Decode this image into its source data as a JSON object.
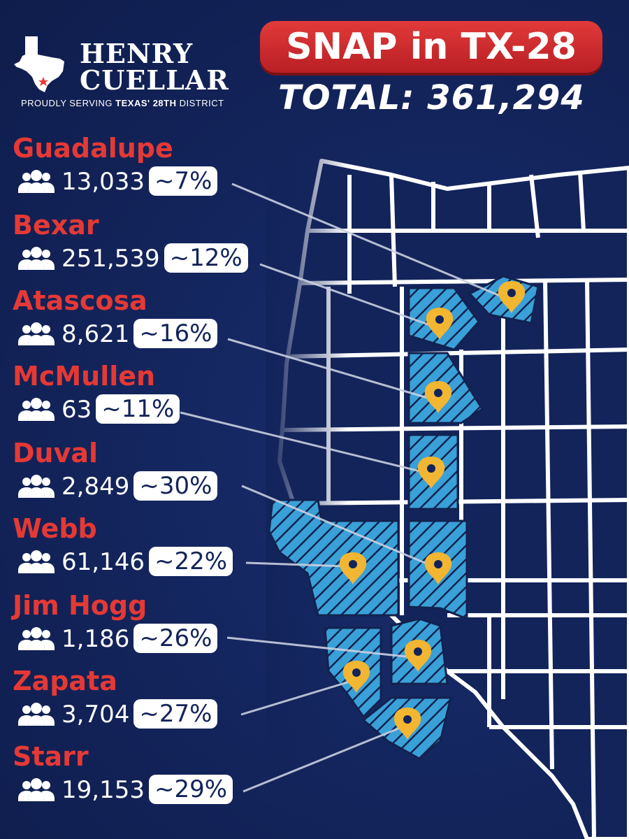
{
  "logo": {
    "name_line1": "HENRY",
    "name_line2": "CUELLAR",
    "tagline_pre": "PROUDLY SERVING ",
    "tagline_bold": "TEXAS' 28TH",
    "tagline_post": " DISTRICT",
    "icon": "texas-state-icon"
  },
  "title": "SNAP in TX-28",
  "total": "TOTAL: 361,294",
  "counties": [
    {
      "name": "Guadalupe",
      "count": "13,033",
      "pct": "~7%"
    },
    {
      "name": "Bexar",
      "count": "251,539",
      "pct": "~12%"
    },
    {
      "name": "Atascosa",
      "count": "8,621",
      "pct": "~16%"
    },
    {
      "name": "McMullen",
      "count": "63",
      "pct": "~11%"
    },
    {
      "name": "Duval",
      "count": "2,849",
      "pct": "~30%"
    },
    {
      "name": "Webb",
      "count": "61,146",
      "pct": "~22%"
    },
    {
      "name": "Jim Hogg",
      "count": "1,186",
      "pct": "~26%"
    },
    {
      "name": "Zapata",
      "count": "3,704",
      "pct": "~27%"
    },
    {
      "name": "Starr",
      "count": "19,153",
      "pct": "~29%"
    }
  ],
  "colors": {
    "background": "#13245b",
    "accent_red": "#e53935",
    "highlight_county": "#3aa0d8",
    "pin": "#f2b632",
    "county_border": "#ffffff"
  },
  "icons": {
    "people": "people-group-icon",
    "pin": "map-pin-icon"
  }
}
